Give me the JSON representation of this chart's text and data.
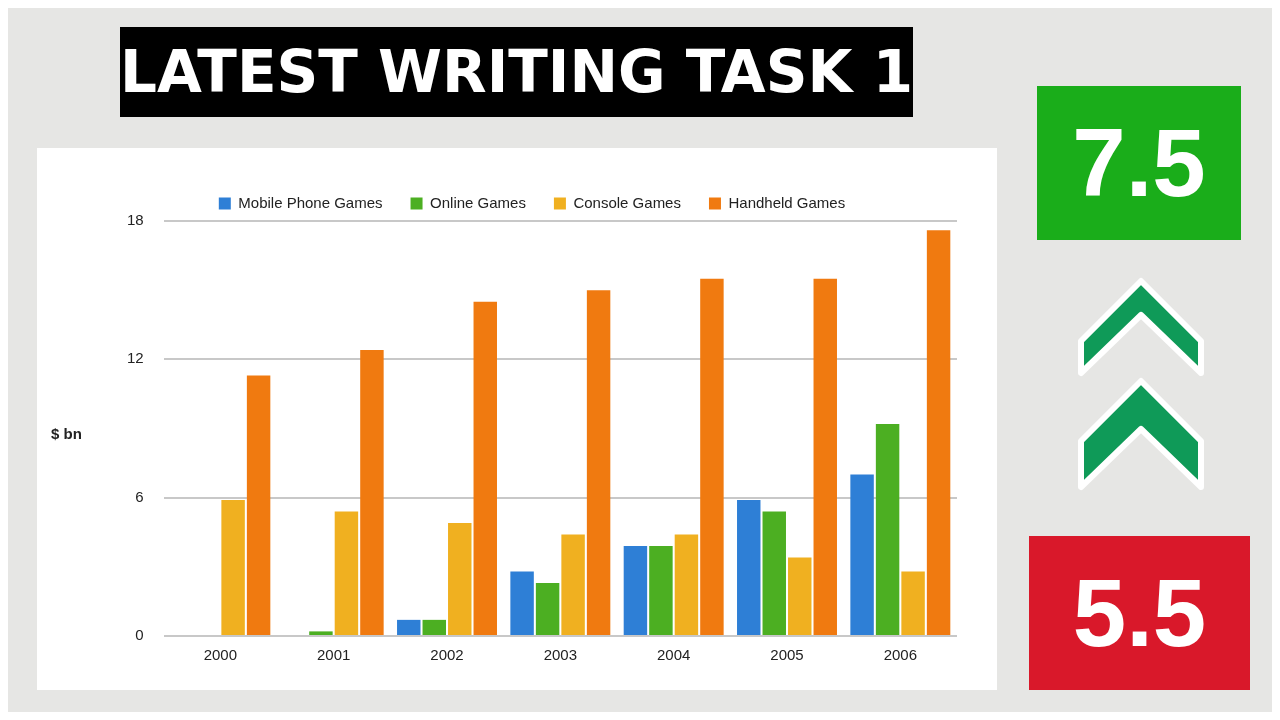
{
  "chart_data": {
    "type": "bar",
    "title": "LATEST WRITING TASK 1",
    "ylabel": "$ bn",
    "categories": [
      "2000",
      "2001",
      "2002",
      "2003",
      "2004",
      "2005",
      "2006"
    ],
    "series": [
      {
        "name": "Mobile Phone Games",
        "color": "#2e7fd6",
        "values": [
          null,
          null,
          0.7,
          2.8,
          3.9,
          5.9,
          7.0
        ]
      },
      {
        "name": "Online Games",
        "color": "#4caf22",
        "values": [
          null,
          0.2,
          0.7,
          2.3,
          3.9,
          5.4,
          9.2
        ]
      },
      {
        "name": "Console Games",
        "color": "#f0b020",
        "values": [
          5.9,
          5.4,
          4.9,
          4.4,
          4.4,
          3.4,
          2.8
        ]
      },
      {
        "name": "Handheld Games",
        "color": "#f07a10",
        "values": [
          11.3,
          12.4,
          14.5,
          15.0,
          15.5,
          15.5,
          17.6
        ]
      }
    ],
    "ylim": [
      0,
      18
    ],
    "yticks": [
      0,
      6,
      12,
      18
    ],
    "grid": "y",
    "legend": "top",
    "annotations": [
      "7.5",
      "5.5"
    ]
  }
}
